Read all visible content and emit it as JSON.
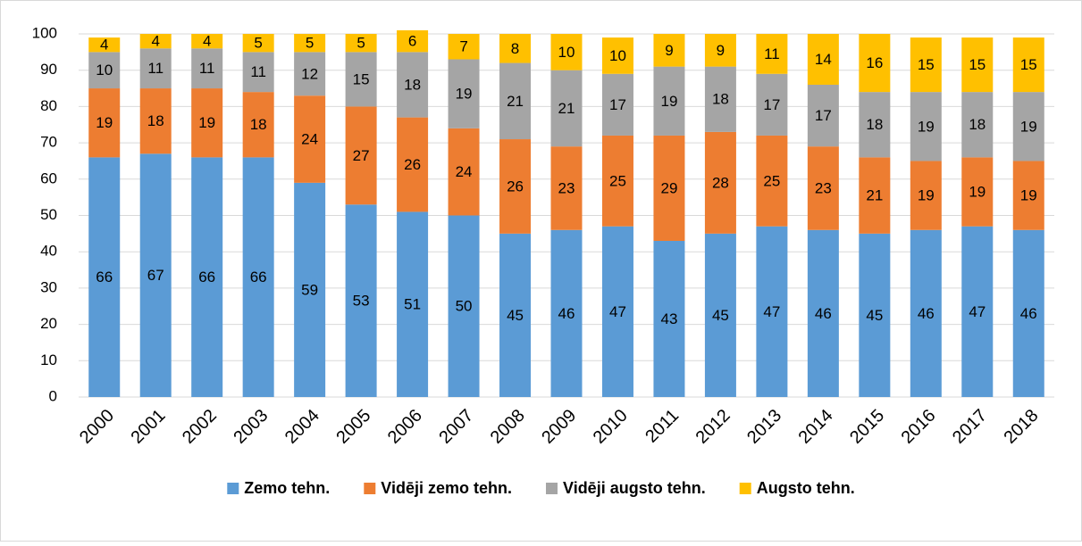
{
  "chart_data": {
    "type": "stacked_bar",
    "categories": [
      "2000",
      "2001",
      "2002",
      "2003",
      "2004",
      "2005",
      "2006",
      "2007",
      "2008",
      "2009",
      "2010",
      "2011",
      "2012",
      "2013",
      "2014",
      "2015",
      "2016",
      "2017",
      "2018"
    ],
    "series": [
      {
        "name": "Zemo tehn.",
        "color": "#5b9bd5",
        "values": [
          66,
          67,
          66,
          66,
          59,
          53,
          51,
          50,
          45,
          46,
          47,
          43,
          45,
          47,
          46,
          45,
          46,
          47,
          46
        ]
      },
      {
        "name": "Vidēji zemo tehn.",
        "color": "#ed7d31",
        "values": [
          19,
          18,
          19,
          18,
          24,
          27,
          26,
          24,
          26,
          23,
          25,
          29,
          28,
          25,
          23,
          21,
          19,
          19,
          19
        ]
      },
      {
        "name": "Vidēji augsto tehn.",
        "color": "#a5a5a5",
        "values": [
          10,
          11,
          11,
          11,
          12,
          15,
          18,
          19,
          21,
          21,
          17,
          19,
          18,
          17,
          17,
          18,
          19,
          18,
          19
        ]
      },
      {
        "name": "Augsto tehn.",
        "color": "#ffc000",
        "values": [
          4,
          4,
          4,
          5,
          5,
          5,
          6,
          7,
          8,
          10,
          10,
          9,
          9,
          11,
          14,
          16,
          15,
          15,
          15
        ]
      }
    ],
    "ylim": [
      0,
      100
    ],
    "yticks": [
      0,
      10,
      20,
      30,
      40,
      50,
      60,
      70,
      80,
      90,
      100
    ],
    "grid": true,
    "legend": "bottom"
  }
}
